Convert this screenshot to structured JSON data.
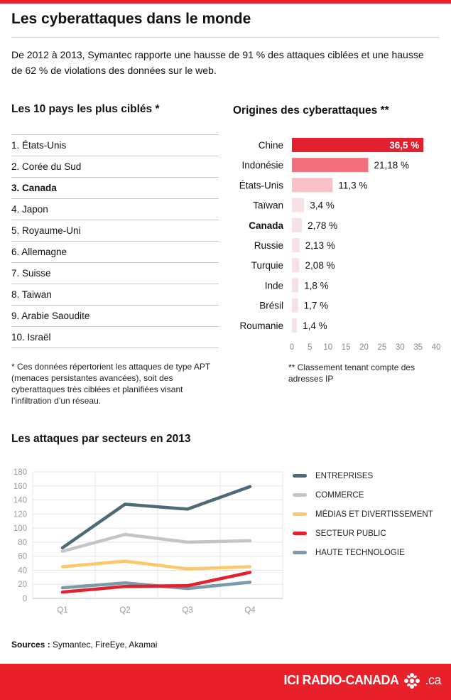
{
  "title": "Les cyberattaques dans le monde",
  "intro": "De 2012 à 2013, Symantec rapporte une hausse de 91 % des attaques ciblées et une hausse de 62 % de violations des données sur le web.",
  "top10": {
    "title": "Les 10 pays les plus ciblés *",
    "items": [
      "1. États-Unis",
      "2. Corée du Sud",
      "3. Canada",
      "4. Japon",
      "5. Royaume-Uni",
      "6. Allemagne",
      "7. Suisse",
      "8. Taiwan",
      "9. Arabie Saoudite",
      "10. Israël"
    ],
    "highlight_index": 2,
    "note": "* Ces données répertorient les attaques de type APT (menaces persistantes avancées), soit des cyberattaques très ciblées et planifiées visant l’infiltration d’un réseau."
  },
  "sectors": {
    "title": "Les attaques par secteurs en 2013"
  },
  "sources": {
    "label": "Sources :",
    "text": "Symantec, FireEye, Akamai"
  },
  "footer": {
    "brand_left": "ICI RADIO-CANADA",
    "brand_right": ".ca"
  },
  "chart_data": [
    {
      "type": "bar",
      "orientation": "horizontal",
      "title": "Origines des cyberattaques **",
      "categories": [
        "Chine",
        "Indonésie",
        "États-Unis",
        "Taïwan",
        "Canada",
        "Russie",
        "Turquie",
        "Inde",
        "Brésil",
        "Roumanie"
      ],
      "values": [
        36.5,
        21.18,
        11.3,
        3.4,
        2.78,
        2.13,
        2.08,
        1.8,
        1.7,
        1.4
      ],
      "value_labels": [
        "36,5 %",
        "21,18 %",
        "11,3 %",
        "3,4 %",
        "2,78 %",
        "2,13 %",
        "2,08 %",
        "1,8 %",
        "1,7 %",
        "1,4 %"
      ],
      "bar_colors": [
        "#e2202e",
        "#f26f7b",
        "#f7c1c7",
        "#f6e2e4",
        "#f6e2e4",
        "#f6e2e4",
        "#f6e2e4",
        "#f6e2e4",
        "#f6e2e4",
        "#f6e2e4"
      ],
      "highlight_category": "Canada",
      "xlim": [
        0,
        40
      ],
      "xticks": [
        0,
        5,
        10,
        15,
        20,
        25,
        30,
        35,
        40
      ],
      "note": "** Classement tenant compte des adresses IP"
    },
    {
      "type": "line",
      "categories": [
        "Q1",
        "Q2",
        "Q3",
        "Q4"
      ],
      "ylim": [
        0,
        180
      ],
      "yticks": [
        0,
        20,
        40,
        60,
        80,
        100,
        120,
        140,
        160,
        180
      ],
      "grid": true,
      "legend": "right",
      "series": [
        {
          "name": "ENTREPRISES",
          "color": "#4d6a76",
          "values": [
            72,
            134,
            127,
            159
          ]
        },
        {
          "name": "COMMERCE",
          "color": "#c3c6c8",
          "values": [
            67,
            91,
            80,
            82
          ]
        },
        {
          "name": "MÉDIAS ET DIVERTISSEMENT",
          "color": "#fbc86c",
          "values": [
            45,
            53,
            42,
            45
          ]
        },
        {
          "name": "SECTEUR PUBLIC",
          "color": "#e2202e",
          "values": [
            9,
            17,
            18,
            37
          ]
        },
        {
          "name": "HAUTE TECHNOLOGIE",
          "color": "#7a9ba8",
          "values": [
            15,
            22,
            14,
            23
          ]
        }
      ]
    }
  ]
}
